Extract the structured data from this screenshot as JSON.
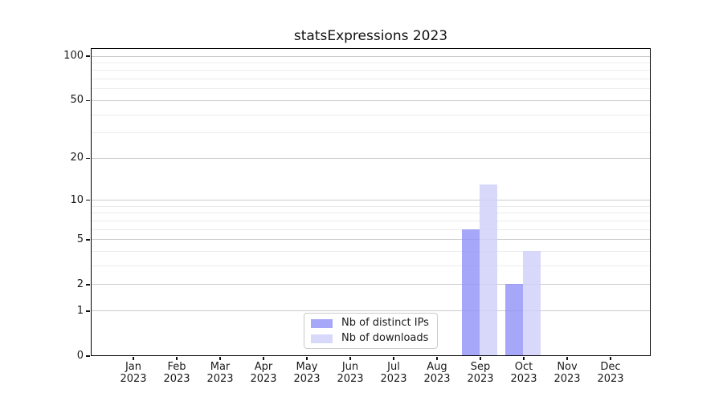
{
  "chart_data": {
    "type": "bar",
    "title": "statsExpressions 2023",
    "x_tick_month_labels": [
      "Jan",
      "Feb",
      "Mar",
      "Apr",
      "May",
      "Jun",
      "Jul",
      "Aug",
      "Sep",
      "Oct",
      "Nov",
      "Dec"
    ],
    "x_tick_year_label": "2023",
    "series": [
      {
        "name": "Nb of distinct IPs",
        "color": "#9494f8",
        "values": [
          0,
          0,
          0,
          0,
          0,
          0,
          0,
          0,
          6,
          2,
          0,
          0
        ]
      },
      {
        "name": "Nb of downloads",
        "color": "#cfcffa",
        "values": [
          0,
          0,
          0,
          0,
          0,
          0,
          0,
          0,
          13,
          4,
          0,
          0
        ]
      }
    ],
    "y_axis": {
      "scale": "log1p",
      "ticks": [
        0,
        1,
        2,
        5,
        10,
        20,
        50,
        100
      ],
      "minor_gridlines": [
        3,
        4,
        6,
        7,
        8,
        9,
        30,
        40,
        60,
        70,
        80,
        90
      ],
      "range_max": 113
    },
    "grid": {
      "enabled": true,
      "major_color": "#cbcbcb",
      "minor_color": "#ececec"
    },
    "legend": {
      "position": "lower center"
    }
  }
}
